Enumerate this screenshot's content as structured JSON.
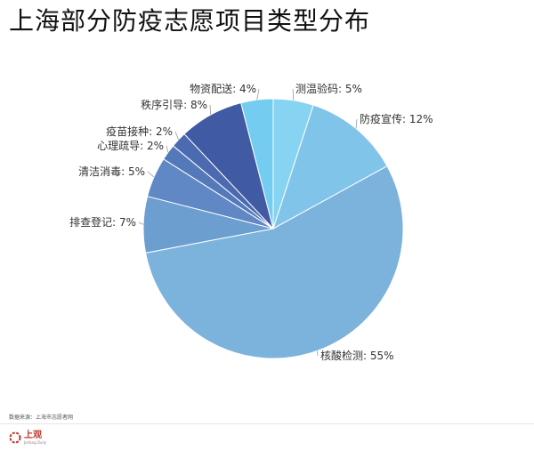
{
  "chart_data": {
    "type": "pie",
    "title": "上海部分防疫志愿项目类型分布",
    "slices": [
      {
        "label": "测温验码: 5%",
        "value": 5,
        "color": "#87d3f2"
      },
      {
        "label": "防疫宣传: 12%",
        "value": 12,
        "color": "#80c4e9"
      },
      {
        "label": "核酸检测: 55%",
        "value": 55,
        "color": "#7cb3dc"
      },
      {
        "label": "排查登记: 7%",
        "value": 7,
        "color": "#6d9ed0"
      },
      {
        "label": "清洁消毒: 5%",
        "value": 5,
        "color": "#5f88c4"
      },
      {
        "label": "心理疏导: 2%",
        "value": 2,
        "color": "#5479b9"
      },
      {
        "label": "疫苗接种: 2%",
        "value": 2,
        "color": "#4b6ab0"
      },
      {
        "label": "秩序引导: 8%",
        "value": 8,
        "color": "#405aa3"
      },
      {
        "label": "物资配送: 4%",
        "value": 4,
        "color": "#74cdf0"
      }
    ]
  },
  "footer": {
    "source": "数据来源：上海市志愿者网",
    "logo_text": "上观",
    "logo_subtext": "Jiefang Daily"
  }
}
